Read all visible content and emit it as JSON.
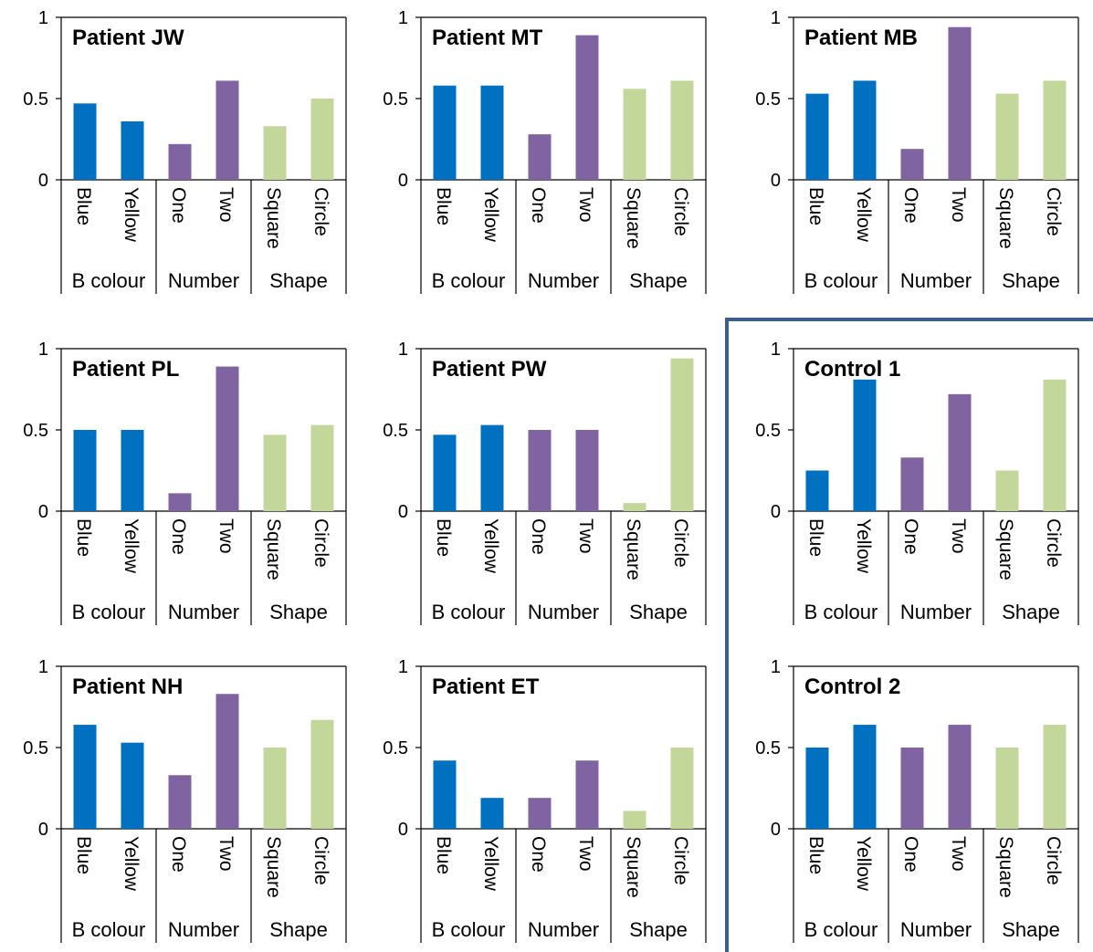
{
  "style": {
    "colors": {
      "B colour": "#0070C0",
      "Number": "#8064A2",
      "Shape": "#C4D79B"
    },
    "control_box_color": "#3F5E8C"
  },
  "chart_data": [
    {
      "type": "bar",
      "title": "Patient JW",
      "categories": [
        "Blue",
        "Yellow",
        "One",
        "Two",
        "Square",
        "Circle"
      ],
      "groups": [
        {
          "name": "B colour",
          "categories": [
            "Blue",
            "Yellow"
          ]
        },
        {
          "name": "Number",
          "categories": [
            "One",
            "Two"
          ]
        },
        {
          "name": "Shape",
          "categories": [
            "Square",
            "Circle"
          ]
        }
      ],
      "values": [
        0.47,
        0.36,
        0.22,
        0.61,
        0.33,
        0.5
      ],
      "ylim": [
        0,
        1
      ],
      "yticks": [
        "0",
        "0.5",
        "1"
      ]
    },
    {
      "type": "bar",
      "title": "Patient MT",
      "categories": [
        "Blue",
        "Yellow",
        "One",
        "Two",
        "Square",
        "Circle"
      ],
      "groups": [
        {
          "name": "B colour",
          "categories": [
            "Blue",
            "Yellow"
          ]
        },
        {
          "name": "Number",
          "categories": [
            "One",
            "Two"
          ]
        },
        {
          "name": "Shape",
          "categories": [
            "Square",
            "Circle"
          ]
        }
      ],
      "values": [
        0.58,
        0.58,
        0.28,
        0.89,
        0.56,
        0.61
      ],
      "ylim": [
        0,
        1
      ],
      "yticks": [
        "0",
        "0.5",
        "1"
      ]
    },
    {
      "type": "bar",
      "title": "Patient MB",
      "categories": [
        "Blue",
        "Yellow",
        "One",
        "Two",
        "Square",
        "Circle"
      ],
      "groups": [
        {
          "name": "B colour",
          "categories": [
            "Blue",
            "Yellow"
          ]
        },
        {
          "name": "Number",
          "categories": [
            "One",
            "Two"
          ]
        },
        {
          "name": "Shape",
          "categories": [
            "Square",
            "Circle"
          ]
        }
      ],
      "values": [
        0.53,
        0.61,
        0.19,
        0.94,
        0.53,
        0.61
      ],
      "ylim": [
        0,
        1
      ],
      "yticks": [
        "0",
        "0.5",
        "1"
      ]
    },
    {
      "type": "bar",
      "title": "Patient PL",
      "categories": [
        "Blue",
        "Yellow",
        "One",
        "Two",
        "Square",
        "Circle"
      ],
      "groups": [
        {
          "name": "B colour",
          "categories": [
            "Blue",
            "Yellow"
          ]
        },
        {
          "name": "Number",
          "categories": [
            "One",
            "Two"
          ]
        },
        {
          "name": "Shape",
          "categories": [
            "Square",
            "Circle"
          ]
        }
      ],
      "values": [
        0.5,
        0.5,
        0.11,
        0.89,
        0.47,
        0.53
      ],
      "ylim": [
        0,
        1
      ],
      "yticks": [
        "0",
        "0.5",
        "1"
      ]
    },
    {
      "type": "bar",
      "title": "Patient PW",
      "categories": [
        "Blue",
        "Yellow",
        "One",
        "Two",
        "Square",
        "Circle"
      ],
      "groups": [
        {
          "name": "B colour",
          "categories": [
            "Blue",
            "Yellow"
          ]
        },
        {
          "name": "Number",
          "categories": [
            "One",
            "Two"
          ]
        },
        {
          "name": "Shape",
          "categories": [
            "Square",
            "Circle"
          ]
        }
      ],
      "values": [
        0.47,
        0.53,
        0.5,
        0.5,
        0.05,
        0.94
      ],
      "ylim": [
        0,
        1
      ],
      "yticks": [
        "0",
        "0.5",
        "1"
      ]
    },
    {
      "type": "bar",
      "title": "Control 1",
      "categories": [
        "Blue",
        "Yellow",
        "One",
        "Two",
        "Square",
        "Circle"
      ],
      "groups": [
        {
          "name": "B colour",
          "categories": [
            "Blue",
            "Yellow"
          ]
        },
        {
          "name": "Number",
          "categories": [
            "One",
            "Two"
          ]
        },
        {
          "name": "Shape",
          "categories": [
            "Square",
            "Circle"
          ]
        }
      ],
      "values": [
        0.25,
        0.81,
        0.33,
        0.72,
        0.25,
        0.81
      ],
      "ylim": [
        0,
        1
      ],
      "yticks": [
        "0",
        "0.5",
        "1"
      ]
    },
    {
      "type": "bar",
      "title": "Patient NH",
      "categories": [
        "Blue",
        "Yellow",
        "One",
        "Two",
        "Square",
        "Circle"
      ],
      "groups": [
        {
          "name": "B colour",
          "categories": [
            "Blue",
            "Yellow"
          ]
        },
        {
          "name": "Number",
          "categories": [
            "One",
            "Two"
          ]
        },
        {
          "name": "Shape",
          "categories": [
            "Square",
            "Circle"
          ]
        }
      ],
      "values": [
        0.64,
        0.53,
        0.33,
        0.83,
        0.5,
        0.67
      ],
      "ylim": [
        0,
        1
      ],
      "yticks": [
        "0",
        "0.5",
        "1"
      ]
    },
    {
      "type": "bar",
      "title": "Patient ET",
      "categories": [
        "Blue",
        "Yellow",
        "One",
        "Two",
        "Square",
        "Circle"
      ],
      "groups": [
        {
          "name": "B colour",
          "categories": [
            "Blue",
            "Yellow"
          ]
        },
        {
          "name": "Number",
          "categories": [
            "One",
            "Two"
          ]
        },
        {
          "name": "Shape",
          "categories": [
            "Square",
            "Circle"
          ]
        }
      ],
      "values": [
        0.42,
        0.19,
        0.19,
        0.42,
        0.11,
        0.5
      ],
      "ylim": [
        0,
        1
      ],
      "yticks": [
        "0",
        "0.5",
        "1"
      ]
    },
    {
      "type": "bar",
      "title": "Control 2",
      "categories": [
        "Blue",
        "Yellow",
        "One",
        "Two",
        "Square",
        "Circle"
      ],
      "groups": [
        {
          "name": "B colour",
          "categories": [
            "Blue",
            "Yellow"
          ]
        },
        {
          "name": "Number",
          "categories": [
            "One",
            "Two"
          ]
        },
        {
          "name": "Shape",
          "categories": [
            "Square",
            "Circle"
          ]
        }
      ],
      "values": [
        0.5,
        0.64,
        0.5,
        0.64,
        0.5,
        0.64
      ],
      "ylim": [
        0,
        1
      ],
      "yticks": [
        "0",
        "0.5",
        "1"
      ]
    }
  ]
}
